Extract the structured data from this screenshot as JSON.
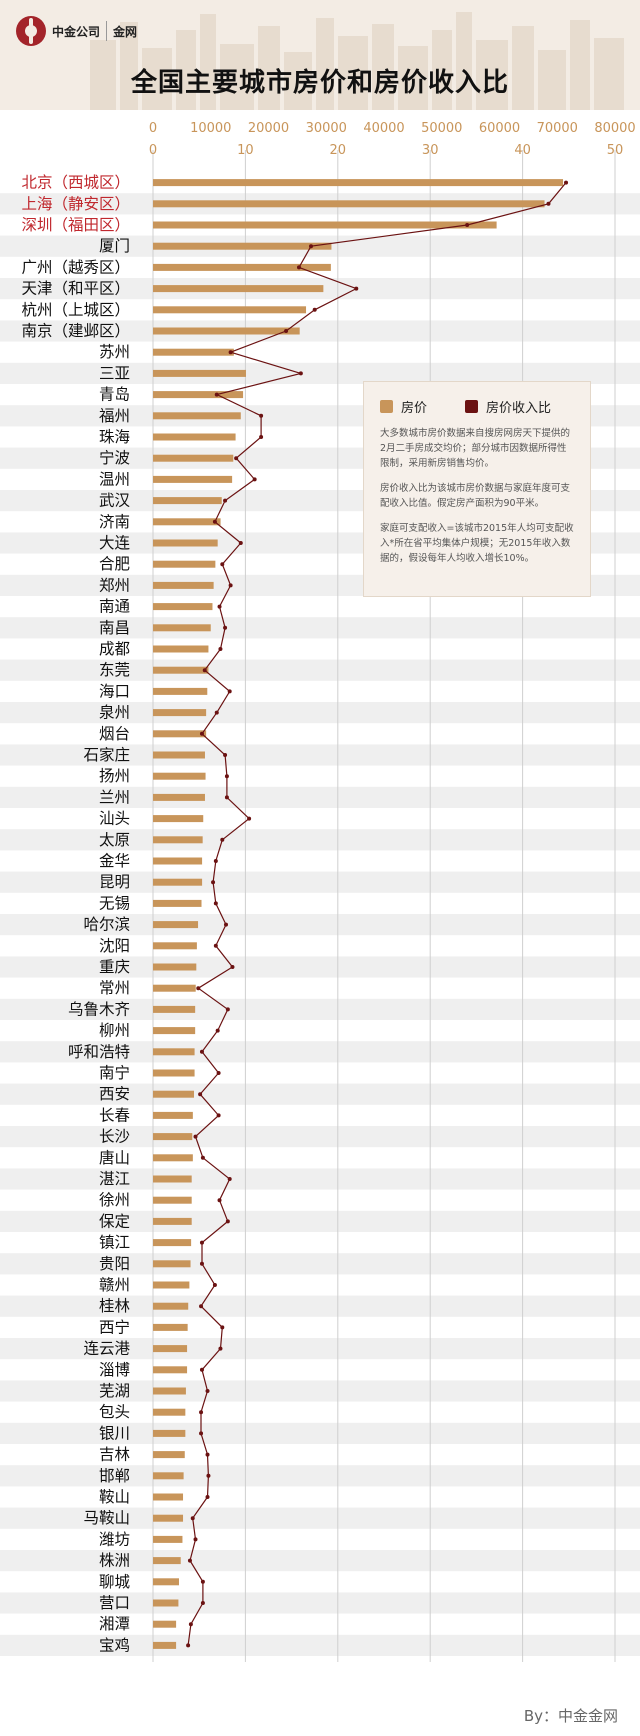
{
  "header": {
    "brand": "中金公司",
    "brand_sub": "金网",
    "title": "全国主要城市房价和房价收入比"
  },
  "legend": {
    "price_label": "房价",
    "ratio_label": "房价收入比",
    "note1": "大多数城市房价数据来自搜房网房天下提供的2月二手房成交均价；部分城市因数据所得性限制，采用新房销售均价。",
    "note2": "房价收入比为该城市房价数据与家庭年度可支配收入比值。假定房产面积为90平米。",
    "note3": "家庭可支配收入=该城市2015年人均可支配收入*所在省平均集体户规模；无2015年收入数据的，假设每年人均收入增长10%。"
  },
  "credit": "By：中金金网",
  "colors": {
    "bar": "#c8955a",
    "line": "#6b1212",
    "highlight": "#c0282e"
  },
  "chart_data": {
    "type": "bar",
    "title": "全国主要城市房价和房价收入比",
    "price_axis": {
      "ticks": [
        0,
        10000,
        20000,
        30000,
        40000,
        50000,
        60000,
        70000,
        80000
      ],
      "range": [
        0,
        80000
      ]
    },
    "ratio_axis": {
      "ticks": [
        0,
        10,
        20,
        30,
        40,
        50
      ],
      "range": [
        0,
        50
      ]
    },
    "highlight": [
      "北京（西城区）",
      "上海（静安区）",
      "深圳（福田区）"
    ],
    "categories": [
      "北京（西城区）",
      "上海（静安区）",
      "深圳（福田区）",
      "厦门",
      "广州（越秀区）",
      "天津（和平区）",
      "杭州（上城区）",
      "南京（建邺区）",
      "苏州",
      "三亚",
      "青岛",
      "福州",
      "珠海",
      "宁波",
      "温州",
      "武汉",
      "济南",
      "大连",
      "合肥",
      "郑州",
      "南通",
      "南昌",
      "成都",
      "东莞",
      "海口",
      "泉州",
      "烟台",
      "石家庄",
      "扬州",
      "兰州",
      "汕头",
      "太原",
      "金华",
      "昆明",
      "无锡",
      "哈尔滨",
      "沈阳",
      "重庆",
      "常州",
      "乌鲁木齐",
      "柳州",
      "呼和浩特",
      "南宁",
      "西安",
      "长春",
      "长沙",
      "唐山",
      "湛江",
      "徐州",
      "保定",
      "镇江",
      "贵阳",
      "赣州",
      "桂林",
      "西宁",
      "连云港",
      "淄博",
      "芜湖",
      "包头",
      "银川",
      "吉林",
      "邯郸",
      "鞍山",
      "马鞍山",
      "潍坊",
      "株洲",
      "聊城",
      "营口",
      "湘潭",
      "宝鸡"
    ],
    "series": [
      {
        "name": "房价",
        "axis": "price",
        "type": "bar",
        "values": [
          71000,
          67800,
          59500,
          30900,
          30800,
          29500,
          26500,
          25400,
          14000,
          16100,
          15600,
          15200,
          14300,
          13900,
          13700,
          11900,
          11700,
          11200,
          10800,
          10500,
          10300,
          10000,
          9600,
          9600,
          9400,
          9200,
          9200,
          9000,
          9100,
          9000,
          8700,
          8600,
          8500,
          8500,
          8400,
          7800,
          7600,
          7500,
          7400,
          7300,
          7300,
          7200,
          7200,
          7100,
          6900,
          6800,
          6900,
          6700,
          6700,
          6700,
          6600,
          6500,
          6300,
          6100,
          6000,
          5900,
          5900,
          5700,
          5600,
          5600,
          5500,
          5300,
          5200,
          5200,
          5100,
          4800,
          4500,
          4400,
          4000,
          4000
        ]
      },
      {
        "name": "房价收入比",
        "axis": "ratio",
        "type": "line",
        "values": [
          44.7,
          42.8,
          34.0,
          17.1,
          15.8,
          22.0,
          17.5,
          14.4,
          8.4,
          16.0,
          6.9,
          11.7,
          11.7,
          9.0,
          11.0,
          7.8,
          6.7,
          9.5,
          7.5,
          8.4,
          7.2,
          7.8,
          7.3,
          5.6,
          8.3,
          6.9,
          5.3,
          7.8,
          8.0,
          8.0,
          10.4,
          7.5,
          6.8,
          6.5,
          6.8,
          7.9,
          6.8,
          8.6,
          4.9,
          8.1,
          7.0,
          5.3,
          7.1,
          5.1,
          7.1,
          4.6,
          5.4,
          8.3,
          7.2,
          8.1,
          5.3,
          5.3,
          6.7,
          5.2,
          7.5,
          7.3,
          5.3,
          5.9,
          5.2,
          5.2,
          5.9,
          6.0,
          5.9,
          4.3,
          4.6,
          4.0,
          5.4,
          5.4,
          4.1,
          3.8
        ]
      }
    ]
  }
}
